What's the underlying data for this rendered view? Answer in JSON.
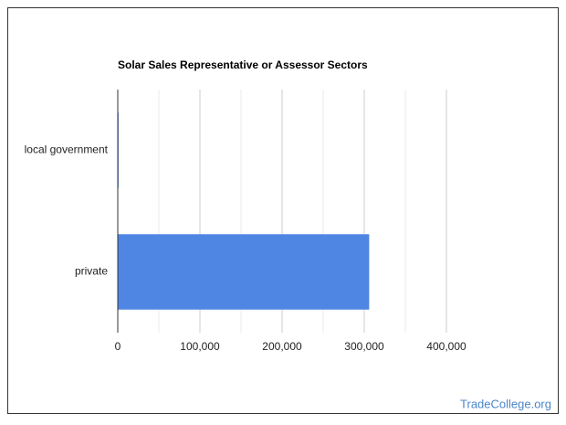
{
  "chart_data": {
    "type": "bar",
    "orientation": "horizontal",
    "title": "Solar Sales Representative or Assessor Sectors",
    "categories": [
      "local government",
      "private"
    ],
    "values": [
      1000,
      306000
    ],
    "color": "#4f86e3",
    "xlim": [
      0,
      400000
    ],
    "xticks": [
      0,
      {
        "value": 100000,
        "label": "100,000"
      },
      {
        "value": 200000,
        "label": "200,000"
      },
      {
        "value": 300000,
        "label": "300,000"
      },
      {
        "value": 400000,
        "label": "400,000"
      }
    ],
    "minor_xticks": [
      50000,
      150000,
      250000,
      350000
    ],
    "grid": true
  },
  "footer": "TradeCollege.org"
}
